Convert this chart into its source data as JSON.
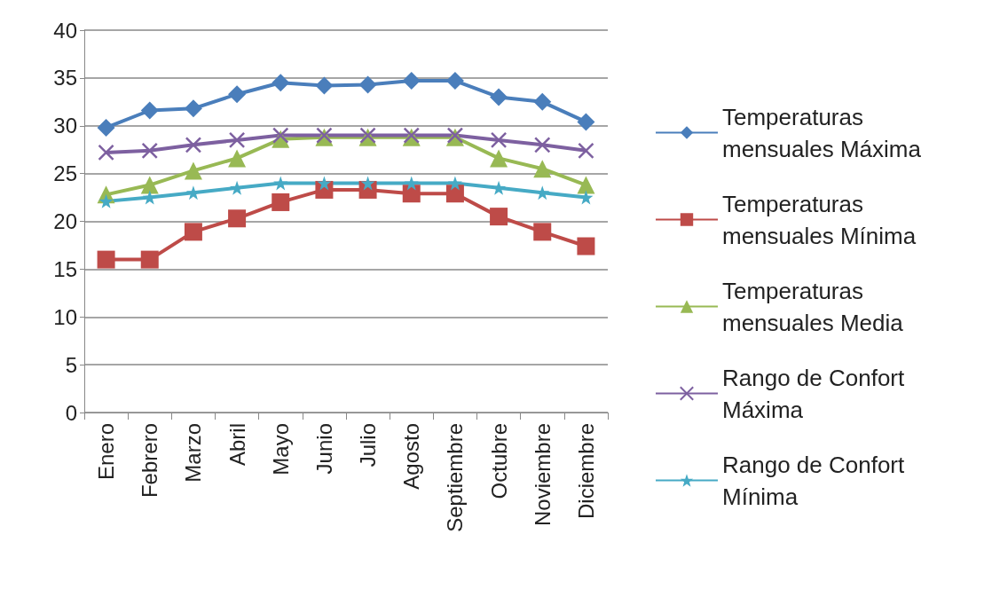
{
  "chart_data": {
    "type": "line",
    "categories": [
      "Enero",
      "Febrero",
      "Marzo",
      "Abril",
      "Mayo",
      "Junio",
      "Julio",
      "Agosto",
      "Septiembre",
      "Octubre",
      "Noviembre",
      "Diciembre"
    ],
    "series": [
      {
        "name": "Temperaturas mensuales Máxima",
        "color": "#4a7ebb",
        "marker": "diamond",
        "values": [
          29.8,
          31.6,
          31.8,
          33.3,
          34.5,
          34.2,
          34.3,
          34.7,
          34.7,
          33,
          32.5,
          30.4
        ]
      },
      {
        "name": "Temperaturas mensuales Mínima",
        "color": "#be4b48",
        "marker": "square",
        "values": [
          16,
          16,
          18.9,
          20.3,
          22,
          23.3,
          23.3,
          22.9,
          22.9,
          20.5,
          18.9,
          17.4
        ]
      },
      {
        "name": "Temperaturas mensuales Media",
        "color": "#98b954",
        "marker": "triangle",
        "values": [
          22.8,
          23.8,
          25.3,
          26.6,
          28.6,
          28.8,
          28.8,
          28.8,
          28.8,
          26.6,
          25.5,
          23.8
        ]
      },
      {
        "name": "Rango de Confort Máxima",
        "color": "#7d60a0",
        "marker": "cross",
        "values": [
          27.2,
          27.4,
          28,
          28.5,
          29,
          29,
          29,
          29,
          29,
          28.5,
          28,
          27.4
        ]
      },
      {
        "name": "Rango de Confort Mínima",
        "color": "#46aac5",
        "marker": "star",
        "values": [
          22.1,
          22.5,
          23,
          23.5,
          24,
          24,
          24,
          24,
          24,
          23.5,
          23,
          22.5
        ]
      }
    ],
    "ylim": [
      0,
      40
    ],
    "yticks": [
      0,
      5,
      10,
      15,
      20,
      25,
      30,
      35,
      40
    ],
    "grid": "y",
    "legend": "right"
  }
}
